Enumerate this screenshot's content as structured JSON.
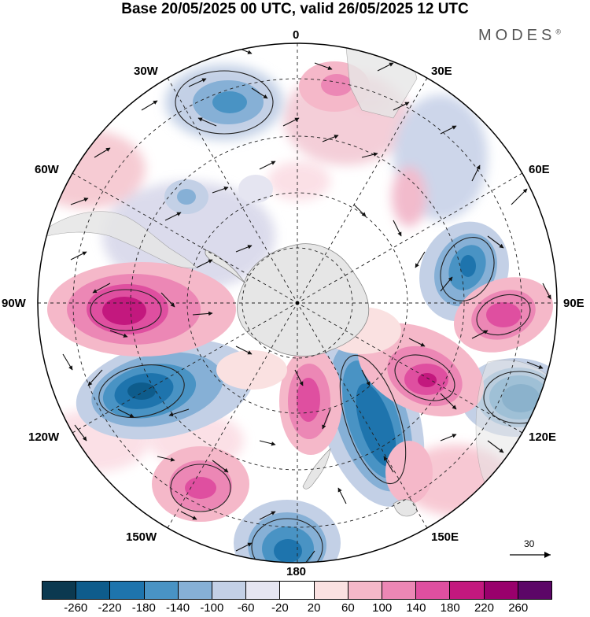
{
  "header": {
    "title": "Base 20/05/2025 00 UTC, valid 26/05/2025 12 UTC",
    "brand": "MODES",
    "brand_mark": "®"
  },
  "map": {
    "projection": "south polar stereographic",
    "longitude_labels": {
      "top": "0",
      "top_right": "30E",
      "upper_right": "60E",
      "right": "90E",
      "lower_right": "120E",
      "bottom_right": "150E",
      "bottom": "180",
      "bottom_left": "150W",
      "lower_left": "120W",
      "left": "90W",
      "upper_left": "60W",
      "top_left": "30W"
    },
    "field_features": [
      {
        "sign": "negative",
        "location": "near 30W, mid latitudes"
      },
      {
        "sign": "positive",
        "location": "near 90W, mid latitudes"
      },
      {
        "sign": "negative",
        "location": "near 110W, mid latitudes"
      },
      {
        "sign": "positive",
        "location": "near 145W"
      },
      {
        "sign": "negative",
        "location": "near 180"
      },
      {
        "sign": "positive",
        "location": "near 170E, high latitudes"
      },
      {
        "sign": "negative",
        "location": "near 160E"
      },
      {
        "sign": "positive",
        "location": "near 125E"
      },
      {
        "sign": "negative",
        "location": "near 115E, outer edge"
      },
      {
        "sign": "positive",
        "location": "near 95E"
      },
      {
        "sign": "negative",
        "location": "near 75E"
      }
    ],
    "vector_reference": "30"
  },
  "colorbar": {
    "colors": [
      "#0b3950",
      "#0e5c8c",
      "#1e74ad",
      "#4993c4",
      "#86b0d6",
      "#c3d0e6",
      "#e5e5f1",
      "#ffffff",
      "#fae1e1",
      "#f5b8c9",
      "#ec87b5",
      "#df4fa0",
      "#c3187e",
      "#99006c",
      "#5c0667"
    ],
    "tick_labels": [
      "-260",
      "-220",
      "-180",
      "-140",
      "-100",
      "-60",
      "-20",
      "20",
      "60",
      "100",
      "140",
      "180",
      "220",
      "260"
    ]
  }
}
